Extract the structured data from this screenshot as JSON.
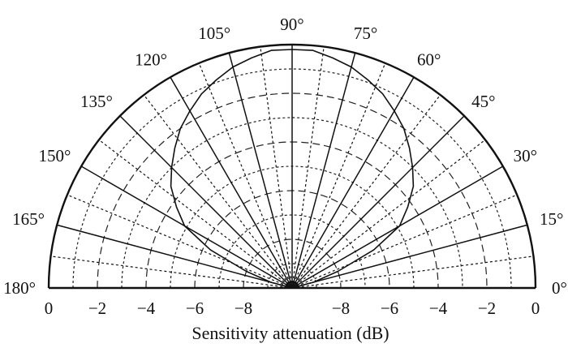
{
  "chart_data": {
    "type": "polar",
    "title": "",
    "xlabel": "Sensitivity attenuation (dB)",
    "angle_labels": [
      "0°",
      "15°",
      "30°",
      "45°",
      "60°",
      "75°",
      "90°",
      "105°",
      "120°",
      "135°",
      "150°",
      "165°",
      "180°"
    ],
    "radial_tick_labels": {
      "left": [
        "0",
        "−2",
        "−4",
        "−6",
        "−8"
      ],
      "right": [
        "−8",
        "−6",
        "−4",
        "−2",
        "0"
      ]
    },
    "radial_range_db": [
      -10,
      0
    ],
    "radial_grid_db": [
      -9,
      -8,
      -7,
      -6,
      -5,
      -4,
      -3,
      -2,
      -1
    ],
    "angle_grid_step_deg": 7.5,
    "grid": true,
    "series": [
      {
        "values_deg_db": [
          [
            0,
            -10
          ],
          [
            10,
            -10
          ],
          [
            15,
            -9.1
          ],
          [
            20,
            -8.0
          ],
          [
            25,
            -6.3
          ],
          [
            30,
            -4.9
          ],
          [
            35,
            -4.2
          ],
          [
            40,
            -3.5
          ],
          [
            45,
            -3.0
          ],
          [
            50,
            -2.5
          ],
          [
            55,
            -2.0
          ],
          [
            60,
            -1.6
          ],
          [
            65,
            -1.2
          ],
          [
            70,
            -0.9
          ],
          [
            75,
            -0.6
          ],
          [
            80,
            -0.4
          ],
          [
            85,
            -0.2
          ],
          [
            90,
            -0.2
          ],
          [
            95,
            -0.2
          ],
          [
            100,
            -0.4
          ],
          [
            105,
            -0.6
          ],
          [
            110,
            -0.9
          ],
          [
            115,
            -1.2
          ],
          [
            120,
            -1.6
          ],
          [
            125,
            -2.0
          ],
          [
            130,
            -2.5
          ],
          [
            135,
            -3.0
          ],
          [
            140,
            -3.5
          ],
          [
            145,
            -4.2
          ],
          [
            150,
            -4.9
          ],
          [
            155,
            -6.3
          ],
          [
            160,
            -8.0
          ],
          [
            165,
            -9.1
          ],
          [
            170,
            -10
          ],
          [
            180,
            -10
          ]
        ]
      }
    ]
  }
}
